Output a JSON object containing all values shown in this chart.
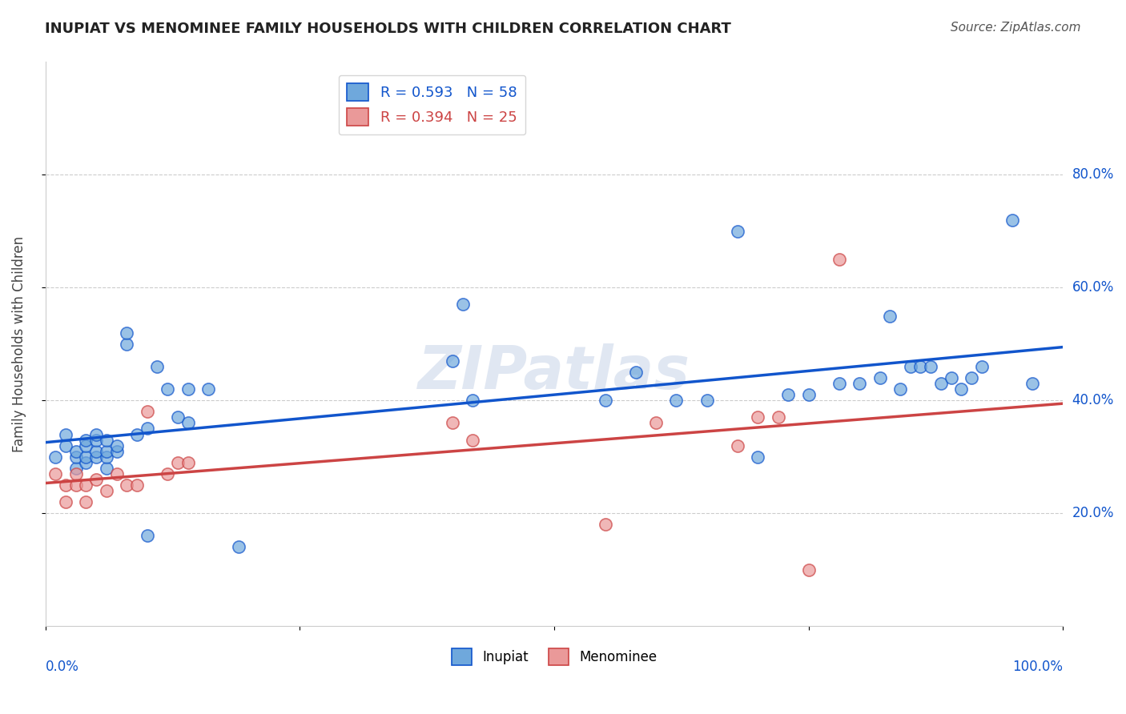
{
  "title": "INUPIAT VS MENOMINEE FAMILY HOUSEHOLDS WITH CHILDREN CORRELATION CHART",
  "source": "Source: ZipAtlas.com",
  "ylabel": "Family Households with Children",
  "inupiat_R": 0.593,
  "inupiat_N": 58,
  "menominee_R": 0.394,
  "menominee_N": 25,
  "inupiat_color": "#6fa8dc",
  "menominee_color": "#ea9999",
  "inupiat_line_color": "#1155cc",
  "menominee_line_color": "#cc4444",
  "ytick_vals": [
    0.2,
    0.4,
    0.6,
    0.8
  ],
  "ytick_labels": [
    "20.0%",
    "40.0%",
    "60.0%",
    "80.0%"
  ],
  "inupiat_x": [
    0.01,
    0.02,
    0.02,
    0.03,
    0.03,
    0.03,
    0.04,
    0.04,
    0.04,
    0.04,
    0.05,
    0.05,
    0.05,
    0.05,
    0.06,
    0.06,
    0.06,
    0.06,
    0.07,
    0.07,
    0.08,
    0.08,
    0.09,
    0.1,
    0.1,
    0.11,
    0.12,
    0.13,
    0.14,
    0.14,
    0.16,
    0.19,
    0.4,
    0.41,
    0.42,
    0.55,
    0.58,
    0.62,
    0.65,
    0.68,
    0.7,
    0.73,
    0.75,
    0.78,
    0.8,
    0.82,
    0.83,
    0.84,
    0.85,
    0.86,
    0.87,
    0.88,
    0.89,
    0.9,
    0.91,
    0.92,
    0.95,
    0.97
  ],
  "inupiat_y": [
    0.3,
    0.32,
    0.34,
    0.28,
    0.3,
    0.31,
    0.29,
    0.3,
    0.32,
    0.33,
    0.3,
    0.31,
    0.33,
    0.34,
    0.28,
    0.3,
    0.31,
    0.33,
    0.31,
    0.32,
    0.5,
    0.52,
    0.34,
    0.35,
    0.16,
    0.46,
    0.42,
    0.37,
    0.36,
    0.42,
    0.42,
    0.14,
    0.47,
    0.57,
    0.4,
    0.4,
    0.45,
    0.4,
    0.4,
    0.7,
    0.3,
    0.41,
    0.41,
    0.43,
    0.43,
    0.44,
    0.55,
    0.42,
    0.46,
    0.46,
    0.46,
    0.43,
    0.44,
    0.42,
    0.44,
    0.46,
    0.72,
    0.43
  ],
  "menominee_x": [
    0.01,
    0.02,
    0.02,
    0.03,
    0.03,
    0.04,
    0.04,
    0.05,
    0.06,
    0.07,
    0.08,
    0.09,
    0.1,
    0.12,
    0.13,
    0.14,
    0.4,
    0.42,
    0.55,
    0.6,
    0.68,
    0.7,
    0.72,
    0.75,
    0.78
  ],
  "menominee_y": [
    0.27,
    0.25,
    0.22,
    0.25,
    0.27,
    0.22,
    0.25,
    0.26,
    0.24,
    0.27,
    0.25,
    0.25,
    0.38,
    0.27,
    0.29,
    0.29,
    0.36,
    0.33,
    0.18,
    0.36,
    0.32,
    0.37,
    0.37,
    0.1,
    0.65
  ]
}
